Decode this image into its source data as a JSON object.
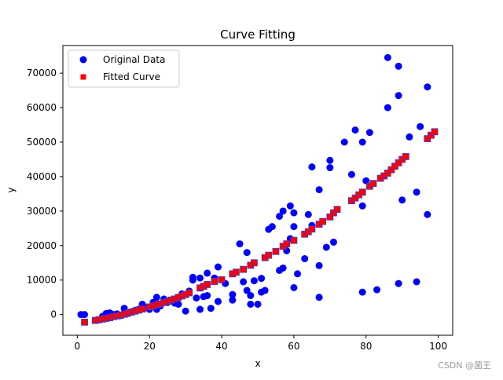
{
  "chart_data": {
    "type": "scatter",
    "title": "Curve Fitting",
    "xlabel": "x",
    "ylabel": "y",
    "xlim": [
      -4,
      104
    ],
    "ylim": [
      -6000,
      78000
    ],
    "xticks": [
      0,
      20,
      40,
      60,
      80,
      100
    ],
    "yticks": [
      0,
      10000,
      20000,
      30000,
      40000,
      50000,
      60000,
      70000
    ],
    "grid": false,
    "legend_position": "top-left",
    "series": [
      {
        "name": "Original Data",
        "marker": "circle",
        "color": "#0000ff",
        "points": [
          [
            1,
            0
          ],
          [
            2,
            0
          ],
          [
            7,
            -500
          ],
          [
            8,
            300
          ],
          [
            9,
            500
          ],
          [
            10,
            0
          ],
          [
            11,
            200
          ],
          [
            12,
            -300
          ],
          [
            13,
            1800
          ],
          [
            14,
            300
          ],
          [
            15,
            800
          ],
          [
            16,
            1200
          ],
          [
            17,
            1500
          ],
          [
            18,
            3000
          ],
          [
            19,
            2000
          ],
          [
            20,
            1500
          ],
          [
            21,
            3500
          ],
          [
            22,
            5000
          ],
          [
            22,
            1500
          ],
          [
            23,
            2500
          ],
          [
            24,
            4500
          ],
          [
            25,
            3500
          ],
          [
            26,
            4200
          ],
          [
            27,
            3300
          ],
          [
            28,
            3000
          ],
          [
            29,
            6000
          ],
          [
            30,
            1000
          ],
          [
            31,
            6800
          ],
          [
            32,
            10000
          ],
          [
            32,
            10800
          ],
          [
            33,
            4800
          ],
          [
            34,
            1500
          ],
          [
            34,
            10600
          ],
          [
            35,
            5200
          ],
          [
            36,
            5500
          ],
          [
            36,
            12000
          ],
          [
            37,
            1800
          ],
          [
            38,
            10600
          ],
          [
            39,
            3800
          ],
          [
            39,
            13800
          ],
          [
            41,
            9000
          ],
          [
            43,
            4200
          ],
          [
            43,
            5800
          ],
          [
            45,
            20500
          ],
          [
            46,
            9500
          ],
          [
            47,
            7000
          ],
          [
            47,
            18000
          ],
          [
            48,
            5500
          ],
          [
            48,
            3000
          ],
          [
            49,
            9800
          ],
          [
            50,
            3000
          ],
          [
            51,
            6500
          ],
          [
            51,
            10500
          ],
          [
            52,
            7000
          ],
          [
            53,
            24700
          ],
          [
            54,
            25500
          ],
          [
            56,
            12800
          ],
          [
            56,
            28500
          ],
          [
            57,
            13500
          ],
          [
            57,
            30000
          ],
          [
            58,
            18500
          ],
          [
            59,
            22000
          ],
          [
            59,
            31500
          ],
          [
            60,
            7800
          ],
          [
            60,
            29500
          ],
          [
            60,
            25500
          ],
          [
            61,
            11800
          ],
          [
            63,
            16200
          ],
          [
            64,
            29000
          ],
          [
            65,
            25800
          ],
          [
            65,
            42800
          ],
          [
            67,
            36200
          ],
          [
            67,
            14200
          ],
          [
            67,
            5000
          ],
          [
            69,
            19500
          ],
          [
            70,
            44700
          ],
          [
            70,
            42600
          ],
          [
            71,
            21000
          ],
          [
            74,
            50000
          ],
          [
            76,
            40600
          ],
          [
            77,
            53500
          ],
          [
            79,
            31500
          ],
          [
            79,
            50000
          ],
          [
            80,
            38800
          ],
          [
            81,
            52800
          ],
          [
            79,
            6500
          ],
          [
            83,
            7200
          ],
          [
            86,
            74500
          ],
          [
            86,
            60000
          ],
          [
            89,
            63500
          ],
          [
            89,
            72000
          ],
          [
            89,
            9000
          ],
          [
            90,
            33200
          ],
          [
            92,
            51500
          ],
          [
            94,
            35500
          ],
          [
            94,
            9500
          ],
          [
            95,
            54500
          ],
          [
            97,
            66000
          ],
          [
            97,
            29000
          ]
        ]
      },
      {
        "name": "Fitted Curve",
        "marker": "square",
        "color": "#ff0000",
        "points": [
          [
            2,
            -2200
          ],
          [
            5,
            -1700
          ],
          [
            6,
            -1500
          ],
          [
            7,
            -1300
          ],
          [
            8,
            -1100
          ],
          [
            9,
            -900
          ],
          [
            10,
            -600
          ],
          [
            11,
            -400
          ],
          [
            12,
            -200
          ],
          [
            13,
            100
          ],
          [
            14,
            400
          ],
          [
            15,
            700
          ],
          [
            16,
            1000
          ],
          [
            17,
            1300
          ],
          [
            18,
            1600
          ],
          [
            20,
            2200
          ],
          [
            21,
            2500
          ],
          [
            22,
            2800
          ],
          [
            23,
            3100
          ],
          [
            24,
            3500
          ],
          [
            25,
            3800
          ],
          [
            26,
            4200
          ],
          [
            27,
            4500
          ],
          [
            28,
            5000
          ],
          [
            29,
            5400
          ],
          [
            30,
            5800
          ],
          [
            31,
            6300
          ],
          [
            34,
            7700
          ],
          [
            35,
            8200
          ],
          [
            36,
            8700
          ],
          [
            38,
            9600
          ],
          [
            40,
            10100
          ],
          [
            43,
            11800
          ],
          [
            44,
            12300
          ],
          [
            46,
            13100
          ],
          [
            48,
            14300
          ],
          [
            49,
            15000
          ],
          [
            52,
            16500
          ],
          [
            53,
            17200
          ],
          [
            55,
            18300
          ],
          [
            57,
            19800
          ],
          [
            58,
            20500
          ],
          [
            60,
            21500
          ],
          [
            63,
            23300
          ],
          [
            64,
            24000
          ],
          [
            65,
            24800
          ],
          [
            67,
            26200
          ],
          [
            68,
            27000
          ],
          [
            70,
            28300
          ],
          [
            71,
            29500
          ],
          [
            72,
            30500
          ],
          [
            76,
            33000
          ],
          [
            77,
            33800
          ],
          [
            78,
            34700
          ],
          [
            79,
            35500
          ],
          [
            81,
            37200
          ],
          [
            82,
            38000
          ],
          [
            84,
            39500
          ],
          [
            85,
            40200
          ],
          [
            86,
            41000
          ],
          [
            87,
            42000
          ],
          [
            88,
            43000
          ],
          [
            89,
            44000
          ],
          [
            90,
            45000
          ],
          [
            91,
            45800
          ],
          [
            97,
            51000
          ],
          [
            98,
            52000
          ],
          [
            99,
            53000
          ]
        ]
      }
    ]
  },
  "watermark": "CSDN @菌王"
}
